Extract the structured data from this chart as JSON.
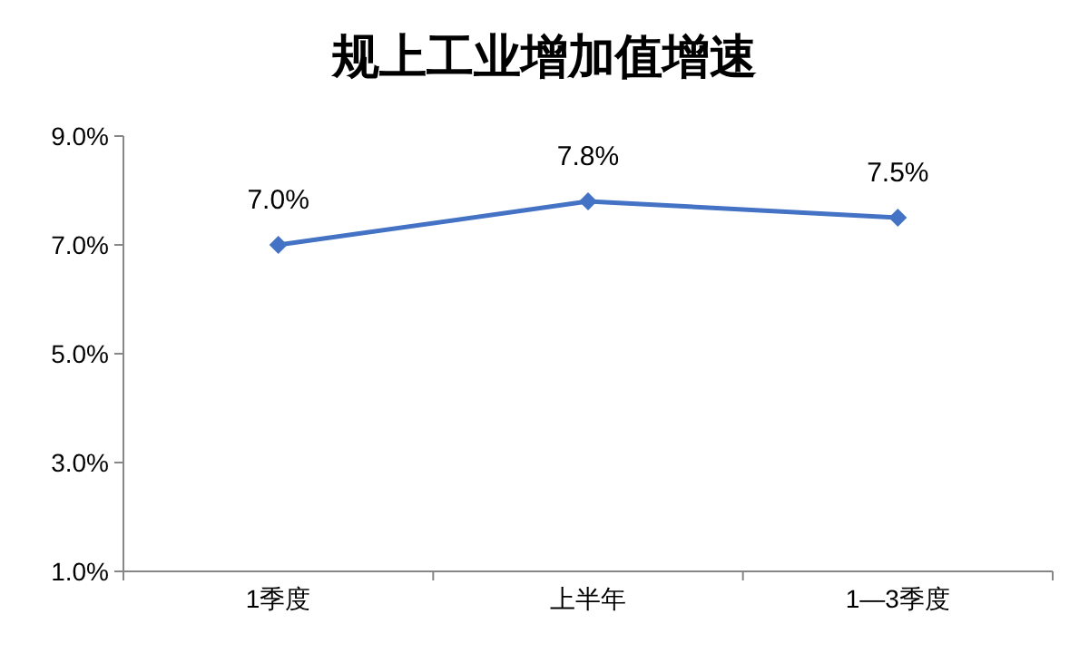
{
  "chart_data": {
    "type": "line",
    "title": "规上工业增加值增速",
    "categories": [
      "1季度",
      "上半年",
      "1—3季度"
    ],
    "series": [
      {
        "color": "#4472c4",
        "values": [
          7.0,
          7.8,
          7.5
        ],
        "value_labels": [
          "7.0%",
          "7.8%",
          "7.5%"
        ]
      }
    ],
    "ylim": [
      1,
      9
    ],
    "yticks": [
      {
        "value": 1,
        "label": "1.0%"
      },
      {
        "value": 3,
        "label": "3.0%"
      },
      {
        "value": 5,
        "label": "5.0%"
      },
      {
        "value": 7,
        "label": "7.0%"
      },
      {
        "value": 9,
        "label": "9.0%"
      }
    ],
    "marker": "diamond",
    "grid": false
  }
}
